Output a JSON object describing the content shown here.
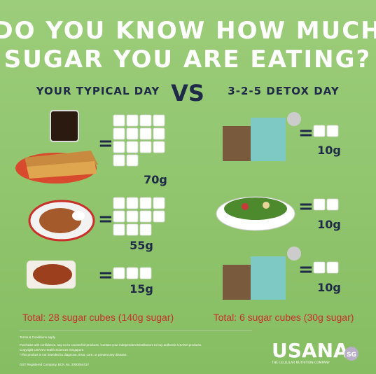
{
  "header": {
    "title_lines": [
      "DO YOU KNOW HOW MUCH",
      "SUGAR YOU ARE EATING?"
    ]
  },
  "columns": {
    "left_heading": "YOUR TYPICAL DAY",
    "vs": "VS",
    "right_heading": "3-2-5 DETOX DAY"
  },
  "left_items": [
    {
      "cubes": 14,
      "grams": "70g"
    },
    {
      "cubes": 11,
      "grams": "55g"
    },
    {
      "cubes": 3,
      "grams": "15g"
    }
  ],
  "right_items": [
    {
      "cubes": 2,
      "grams": "10g"
    },
    {
      "cubes": 2,
      "grams": "10g"
    },
    {
      "cubes": 2,
      "grams": "10g"
    }
  ],
  "totals": {
    "left": "Total: 28 sugar cubes (140g sugar)",
    "right": "Total: 6 sugar cubes (30g sugar)"
  },
  "footer": {
    "terms": "Terms & Conditions apply",
    "lines": [
      "Purchase with confidence, say no to counterfeit products. Contact your independent Distributors to buy authentic USANA products.",
      "Copyright USANA Health Sciences Singapore.",
      "*This product is not intended to diagnose, treat, cure, or prevent any disease."
    ],
    "gst": "GST Registered Company, BCN No. 200005441Y"
  },
  "logo": {
    "name": "USANA",
    "tagline": "THE CELLULAR NUTRITION COMPANY",
    "region": "SG"
  }
}
